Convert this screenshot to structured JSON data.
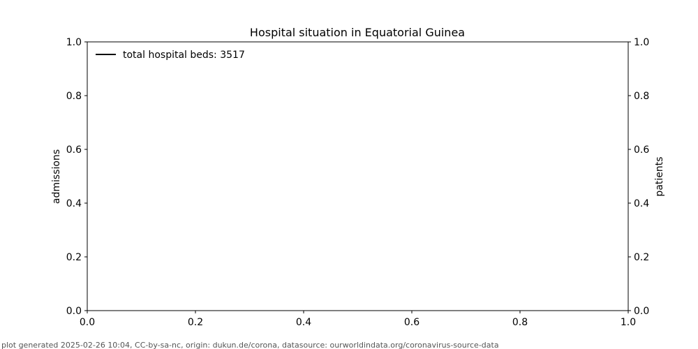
{
  "chart_data": {
    "type": "line",
    "title": "Hospital situation in Equatorial Guinea",
    "ylabel_left": "admissions",
    "ylabel_right": "patients",
    "xlim": [
      0.0,
      1.0
    ],
    "ylim_left": [
      0.0,
      1.0
    ],
    "ylim_right": [
      0.0,
      1.0
    ],
    "x_ticks": [
      "0.0",
      "0.2",
      "0.4",
      "0.6",
      "0.8",
      "1.0"
    ],
    "y_ticks_left": [
      "0.0",
      "0.2",
      "0.4",
      "0.6",
      "0.8",
      "1.0"
    ],
    "y_ticks_right": [
      "0.0",
      "0.2",
      "0.4",
      "0.6",
      "0.8",
      "1.0"
    ],
    "grid": false,
    "legend_position": "top-left",
    "series": [
      {
        "name": "total hospital beds: 3517",
        "color": "#000000",
        "x": [],
        "y": []
      }
    ]
  },
  "footer": {
    "text": "plot generated 2025-02-26 10:04, CC-by-sa-nc, origin: dukun.de/corona, datasource: ourworldindata.org/coronavirus-source-data"
  }
}
